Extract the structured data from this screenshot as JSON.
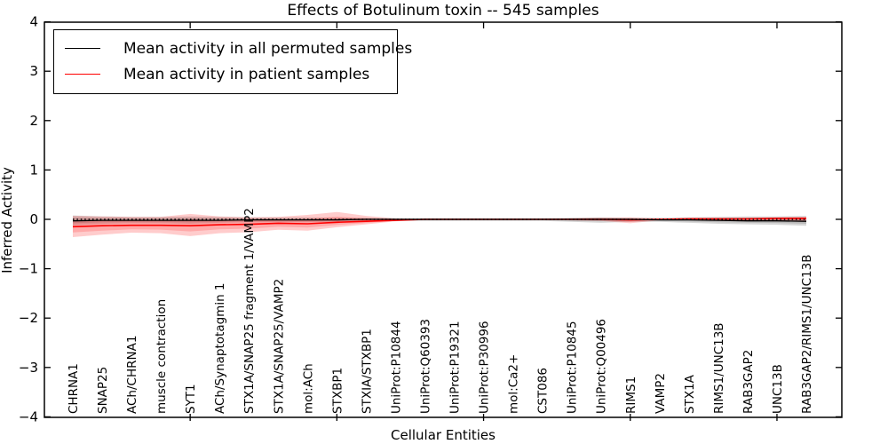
{
  "figure": {
    "title": "Effects of Botulinum toxin -- 545 samples",
    "xlabel": "Cellular Entities",
    "ylabel": "Inferred Activity"
  },
  "legend": {
    "entries": [
      {
        "label": "Mean activity in all permuted samples",
        "color": "#000000"
      },
      {
        "label": "Mean activity in patient samples",
        "color": "#ff0000"
      }
    ]
  },
  "chart_data": {
    "type": "line",
    "title": "Effects of Botulinum toxin -- 545 samples",
    "xlabel": "Cellular Entities",
    "ylabel": "Inferred Activity",
    "ylim": [
      -4,
      4
    ],
    "yticks": [
      -4,
      -3,
      -2,
      -1,
      0,
      1,
      2,
      3,
      4
    ],
    "xtick_indices": [
      4,
      9,
      14,
      19,
      24
    ],
    "grid": false,
    "legend_position": "upper left",
    "zero_line": {
      "y": 0,
      "style": "dotted",
      "color": "#000000"
    },
    "categories": [
      "CHRNA1",
      "SNAP25",
      "ACh/CHRNA1",
      "muscle contraction",
      "SYT1",
      "ACh/Synaptotagmin 1",
      "STX1A/SNAP25 fragment 1/VAMP2",
      "STX1A/SNAP25/VAMP2",
      "mol:ACh",
      "STXBP1",
      "STXIA/STXBP1",
      "UniProt:P10844",
      "UniProt:Q60393",
      "UniProt:P19321",
      "UniProt:P30996",
      "mol:Ca2+",
      "CST086",
      "UniProt:P10845",
      "UniProt:Q00496",
      "RIMS1",
      "VAMP2",
      "STX1A",
      "RIMS1/UNC13B",
      "RAB3GAP2",
      "UNC13B",
      "RAB3GAP2/RIMS1/UNC13B"
    ],
    "series": [
      {
        "name": "Mean activity in all permuted samples",
        "color": "#000000",
        "style": "solid",
        "values": [
          -0.03,
          -0.02,
          -0.02,
          -0.02,
          -0.02,
          -0.02,
          -0.01,
          -0.01,
          -0.01,
          -0.01,
          0,
          0,
          0,
          0,
          0,
          0,
          0,
          0,
          0,
          0,
          -0.01,
          -0.01,
          -0.02,
          -0.03,
          -0.03,
          -0.04
        ]
      },
      {
        "name": "Mean activity in patient samples",
        "color": "#ff0000",
        "style": "solid",
        "values": [
          -0.15,
          -0.13,
          -0.12,
          -0.12,
          -0.13,
          -0.11,
          -0.1,
          -0.08,
          -0.09,
          -0.06,
          -0.04,
          -0.02,
          0,
          0,
          0,
          0,
          0,
          0,
          0,
          -0.01,
          0,
          0.01,
          0.01,
          0.01,
          0.02,
          0.02
        ]
      }
    ],
    "bands": [
      {
        "name": "permuted-samples-range",
        "color": "#000000",
        "opacity": 0.16,
        "upper": [
          0.08,
          0.06,
          0.05,
          0.05,
          0.06,
          0.05,
          0.04,
          0.04,
          0.04,
          0.03,
          0.03,
          0.02,
          0.02,
          0.02,
          0.02,
          0.02,
          0.02,
          0.03,
          0.04,
          0.03,
          0.03,
          0.04,
          0.05,
          0.06,
          0.06,
          0.07
        ],
        "lower": [
          -0.12,
          -0.09,
          -0.08,
          -0.08,
          -0.09,
          -0.07,
          -0.06,
          -0.06,
          -0.06,
          -0.05,
          -0.04,
          -0.03,
          -0.03,
          -0.03,
          -0.03,
          -0.03,
          -0.03,
          -0.05,
          -0.07,
          -0.05,
          -0.05,
          -0.07,
          -0.09,
          -0.1,
          -0.11,
          -0.13
        ]
      },
      {
        "name": "patient-samples-range",
        "color": "#ff0000",
        "opacity": 0.2,
        "upper": [
          0.07,
          0.06,
          0.05,
          0.05,
          0.11,
          0.06,
          0.04,
          0.05,
          0.09,
          0.15,
          0.07,
          0.02,
          0.01,
          0.01,
          0.01,
          0.01,
          0.01,
          0.02,
          0.03,
          0.04,
          0.01,
          0.02,
          0.02,
          0.03,
          0.04,
          0.05
        ],
        "lower": [
          -0.36,
          -0.31,
          -0.27,
          -0.28,
          -0.34,
          -0.28,
          -0.26,
          -0.21,
          -0.23,
          -0.16,
          -0.1,
          -0.04,
          -0.01,
          -0.01,
          -0.01,
          -0.01,
          -0.01,
          -0.02,
          -0.03,
          -0.08,
          -0.02,
          -0.02,
          -0.02,
          -0.03,
          -0.04,
          -0.05
        ]
      }
    ]
  }
}
